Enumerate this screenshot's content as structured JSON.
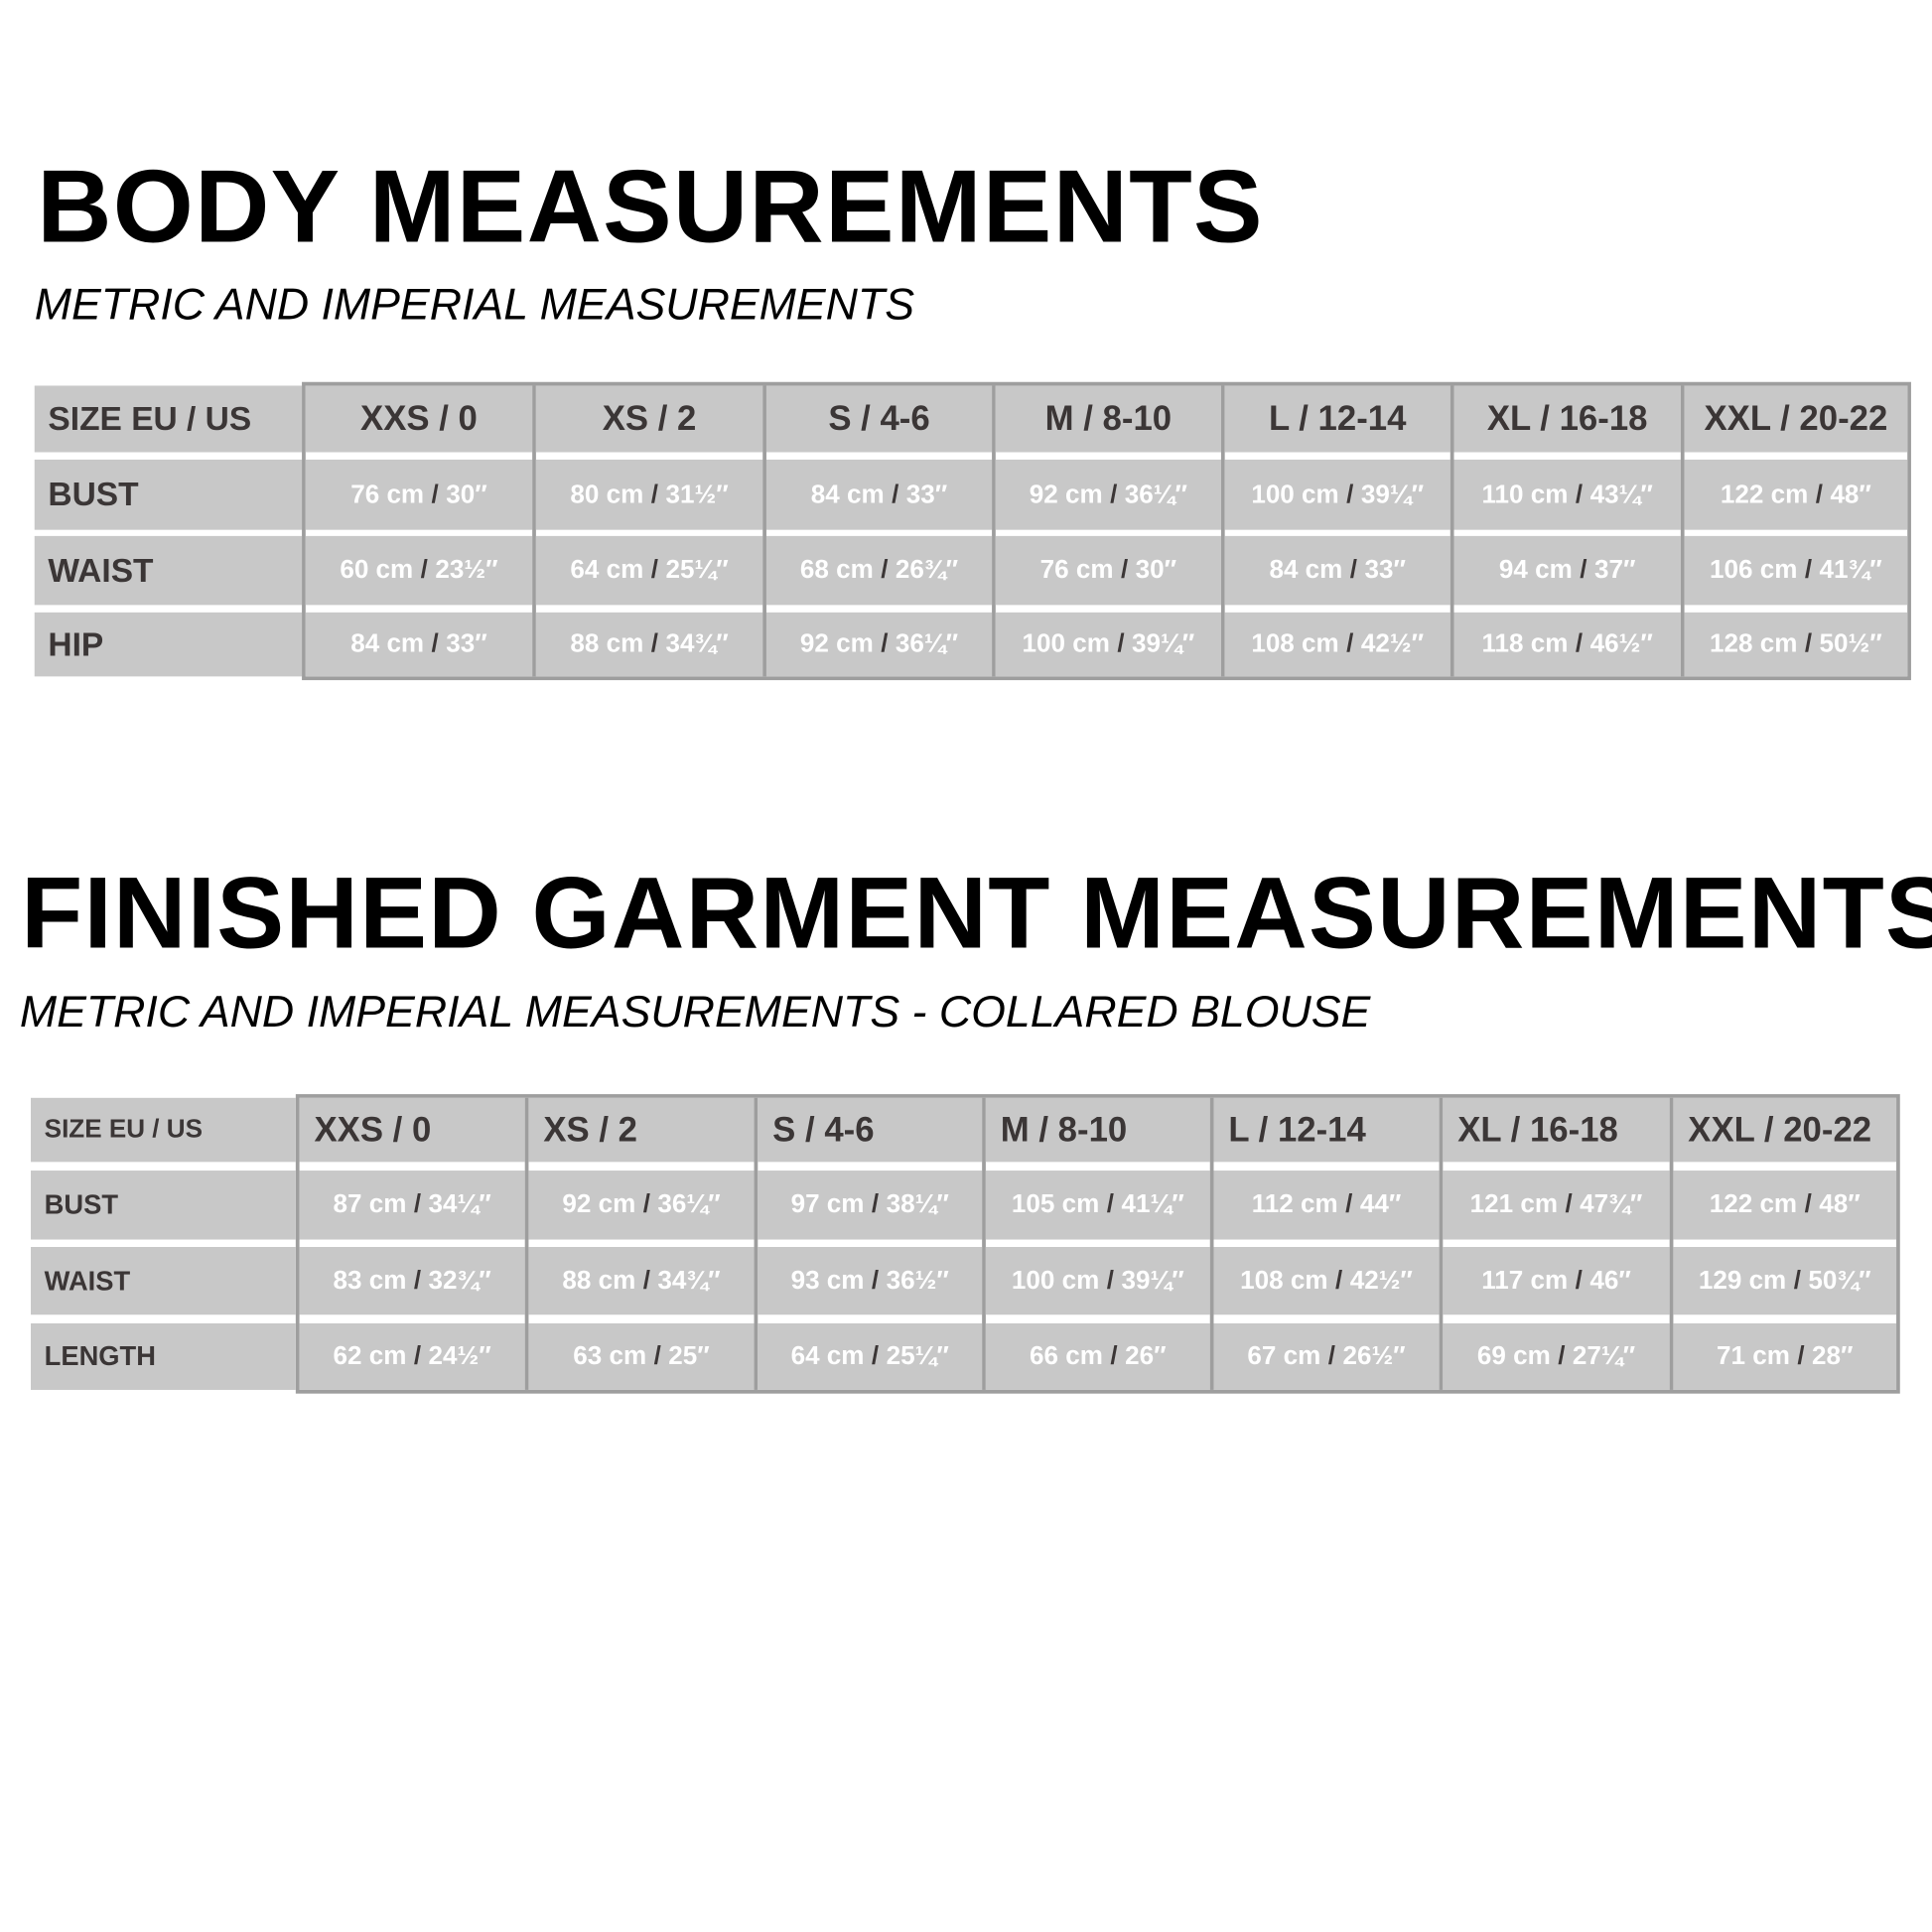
{
  "body": {
    "title": "BODY MEASUREMENTS",
    "subtitle": "METRIC AND IMPERIAL MEASUREMENTS",
    "table": {
      "corner_label": "SIZE EU / US",
      "sizes": [
        "XXS / 0",
        "XS / 2",
        "S / 4-6",
        "M / 8-10",
        "L  / 12-14",
        "XL / 16-18",
        "XXL / 20-22"
      ],
      "rows": [
        {
          "label": "BUST",
          "values": [
            {
              "cm": "76 cm",
              "sep": "/",
              "in": "30″"
            },
            {
              "cm": "80 cm",
              "sep": "/",
              "in": "31½″"
            },
            {
              "cm": "84 cm",
              "sep": "/",
              "in": "33″"
            },
            {
              "cm": "92 cm",
              "sep": "/",
              "in": "36¼″"
            },
            {
              "cm": "100 cm",
              "sep": "/",
              "in": "39¼″"
            },
            {
              "cm": "110 cm",
              "sep": "/",
              "in": "43¼″"
            },
            {
              "cm": "122 cm",
              "sep": "/",
              "in": "48″"
            }
          ]
        },
        {
          "label": "WAIST",
          "values": [
            {
              "cm": "60 cm",
              "sep": "/",
              "in": "23½″"
            },
            {
              "cm": "64 cm",
              "sep": "/",
              "in": "25¼″"
            },
            {
              "cm": "68 cm",
              "sep": "/",
              "in": "26¾″"
            },
            {
              "cm": "76 cm",
              "sep": "/",
              "in": "30″"
            },
            {
              "cm": "84 cm",
              "sep": "/",
              "in": "33″"
            },
            {
              "cm": "94 cm",
              "sep": "/",
              "in": "37″"
            },
            {
              "cm": "106 cm",
              "sep": "/",
              "in": "41¾″"
            }
          ]
        },
        {
          "label": "HIP",
          "values": [
            {
              "cm": "84 cm",
              "sep": "/",
              "in": "33″"
            },
            {
              "cm": "88 cm",
              "sep": "/",
              "in": "34¾″"
            },
            {
              "cm": "92 cm",
              "sep": "/",
              "in": "36¼″"
            },
            {
              "cm": "100 cm",
              "sep": "/",
              "in": "39¼″"
            },
            {
              "cm": "108 cm",
              "sep": "/",
              "in": "42½″"
            },
            {
              "cm": "118 cm",
              "sep": "/",
              "in": "46½″"
            },
            {
              "cm": "128 cm",
              "sep": "/",
              "in": "50½″"
            }
          ]
        }
      ]
    }
  },
  "garment": {
    "title": "FINISHED GARMENT MEASUREMENTS",
    "subtitle": "METRIC AND IMPERIAL MEASUREMENTS - COLLARED BLOUSE",
    "table": {
      "corner_label": "SIZE EU / US",
      "sizes": [
        "XXS / 0",
        "XS / 2",
        "S / 4-6",
        "M / 8-10",
        "L  / 12-14",
        "XL / 16-18",
        "XXL / 20-22"
      ],
      "rows": [
        {
          "label": "BUST",
          "values": [
            {
              "cm": "87 cm",
              "sep": "/",
              "in": "34¼″"
            },
            {
              "cm": "92 cm",
              "sep": "/",
              "in": "36¼″"
            },
            {
              "cm": "97 cm",
              "sep": "/",
              "in": "38¼″"
            },
            {
              "cm": "105 cm",
              "sep": "/",
              "in": "41¼″"
            },
            {
              "cm": "112 cm",
              "sep": "/",
              "in": "44″"
            },
            {
              "cm": "121 cm",
              "sep": "/",
              "in": "47¾″"
            },
            {
              "cm": "122 cm",
              "sep": "/",
              "in": "48″"
            }
          ]
        },
        {
          "label": "WAIST",
          "values": [
            {
              "cm": "83 cm",
              "sep": "/",
              "in": "32¾″"
            },
            {
              "cm": "88 cm",
              "sep": "/",
              "in": "34¾″"
            },
            {
              "cm": "93 cm",
              "sep": "/",
              "in": "36½″"
            },
            {
              "cm": "100 cm",
              "sep": "/",
              "in": "39¼″"
            },
            {
              "cm": "108 cm",
              "sep": "/",
              "in": "42½″"
            },
            {
              "cm": "117 cm",
              "sep": "/",
              "in": "46″"
            },
            {
              "cm": "129 cm",
              "sep": "/",
              "in": "50¾″"
            }
          ]
        },
        {
          "label": "LENGTH",
          "values": [
            {
              "cm": "62 cm",
              "sep": "/",
              "in": "24½″"
            },
            {
              "cm": "63 cm",
              "sep": "/",
              "in": "25″"
            },
            {
              "cm": "64 cm",
              "sep": "/",
              "in": "25¼″"
            },
            {
              "cm": "66 cm",
              "sep": "/",
              "in": "26″"
            },
            {
              "cm": "67 cm",
              "sep": "/",
              "in": "26½″"
            },
            {
              "cm": "69 cm",
              "sep": "/",
              "in": "27¼″"
            },
            {
              "cm": "71 cm",
              "sep": "/",
              "in": "28″"
            }
          ]
        }
      ]
    }
  },
  "colors": {
    "cell_bg": "#c8c8c8",
    "border": "#9e9e9e",
    "label_text": "#3b3636",
    "value_text": "#ffffff"
  }
}
